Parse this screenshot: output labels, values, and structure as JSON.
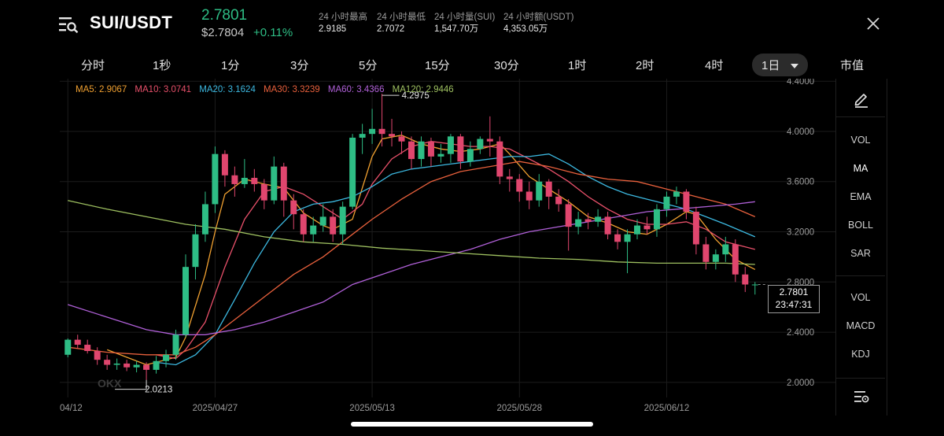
{
  "header": {
    "pair": "SUI/USDT",
    "last_price": "2.7801",
    "price_usd": "$2.7804",
    "change": "+0.11%",
    "stats": [
      {
        "label": "24 小时最高",
        "value": "2.9185"
      },
      {
        "label": "24 小时最低",
        "value": "2.7072"
      },
      {
        "label": "24 小时量(SUI)",
        "value": "1,547.70万"
      },
      {
        "label": "24 小时额(USDT)",
        "value": "4,353.05万"
      }
    ]
  },
  "tabs": [
    "分时",
    "1秒",
    "1分",
    "3分",
    "5分",
    "15分",
    "30分",
    "1时",
    "2时",
    "4时",
    "1日",
    "市值"
  ],
  "active_tab": "1日",
  "ma_legend": [
    {
      "label": "MA5: 2.9067",
      "color": "#f0a030"
    },
    {
      "label": "MA10: 3.0741",
      "color": "#e8506a"
    },
    {
      "label": "MA20: 3.1624",
      "color": "#3cb8e0"
    },
    {
      "label": "MA30: 3.3239",
      "color": "#e8603c"
    },
    {
      "label": "MA60: 3.4366",
      "color": "#b060d8"
    },
    {
      "label": "MA120: 2.9446",
      "color": "#9ec060"
    }
  ],
  "price_tag": {
    "price": "2.7801",
    "countdown": "23:47:31"
  },
  "annotations": {
    "high": "4.2975",
    "low": "2.0213"
  },
  "watermark": "OKX",
  "right_panel": {
    "main_items": [
      "VOL",
      "MA",
      "EMA",
      "BOLL",
      "SAR"
    ],
    "active_main": "MA",
    "sub_items": [
      "VOL",
      "MACD",
      "KDJ"
    ]
  },
  "colors": {
    "up": "#2ebd85",
    "down": "#e0466e",
    "grid": "#1c1c1c",
    "axis_text": "#9a9a9a"
  },
  "chart_data": {
    "type": "candlestick",
    "y_ticks": [
      4.4,
      4.0,
      3.6,
      3.2,
      2.8,
      2.4,
      2.0
    ],
    "y_tick_labels": [
      "4.4000",
      "4.0000",
      "3.6000",
      "3.2000",
      "2.8000",
      "2.4000",
      "2.0000"
    ],
    "ylim": [
      1.88,
      4.42
    ],
    "x_labels": [
      {
        "label": "04/12",
        "index": 0
      },
      {
        "label": "2025/04/27",
        "index": 15
      },
      {
        "label": "2025/05/13",
        "index": 31
      },
      {
        "label": "2025/05/28",
        "index": 46
      },
      {
        "label": "2025/06/12",
        "index": 61
      }
    ],
    "candles": [
      [
        2.22,
        2.34,
        2.2,
        2.35
      ],
      [
        2.34,
        2.3,
        2.27,
        2.38
      ],
      [
        2.3,
        2.25,
        2.23,
        2.34
      ],
      [
        2.25,
        2.18,
        2.14,
        2.28
      ],
      [
        2.18,
        2.14,
        2.1,
        2.22
      ],
      [
        2.14,
        2.15,
        2.1,
        2.19
      ],
      [
        2.15,
        2.12,
        2.09,
        2.18
      ],
      [
        2.12,
        2.14,
        2.08,
        2.17
      ],
      [
        2.14,
        2.1,
        2.02,
        2.16
      ],
      [
        2.1,
        2.17,
        2.07,
        2.21
      ],
      [
        2.17,
        2.22,
        2.12,
        2.26
      ],
      [
        2.22,
        2.38,
        2.18,
        2.42
      ],
      [
        2.38,
        2.92,
        2.36,
        3.02
      ],
      [
        2.92,
        3.18,
        2.82,
        3.26
      ],
      [
        3.18,
        3.42,
        3.12,
        3.52
      ],
      [
        3.42,
        3.82,
        3.35,
        3.88
      ],
      [
        3.82,
        3.65,
        3.56,
        3.85
      ],
      [
        3.65,
        3.58,
        3.48,
        3.72
      ],
      [
        3.58,
        3.63,
        3.55,
        3.78
      ],
      [
        3.63,
        3.58,
        3.52,
        3.7
      ],
      [
        3.58,
        3.45,
        3.38,
        3.62
      ],
      [
        3.45,
        3.72,
        3.42,
        3.8
      ],
      [
        3.72,
        3.45,
        3.32,
        3.75
      ],
      [
        3.45,
        3.34,
        3.22,
        3.5
      ],
      [
        3.34,
        3.18,
        3.12,
        3.38
      ],
      [
        3.18,
        3.25,
        3.12,
        3.32
      ],
      [
        3.25,
        3.32,
        3.2,
        3.42
      ],
      [
        3.32,
        3.18,
        3.12,
        3.38
      ],
      [
        3.18,
        3.4,
        3.1,
        3.44
      ],
      [
        3.4,
        3.95,
        3.38,
        3.98
      ],
      [
        3.95,
        3.98,
        3.82,
        4.06
      ],
      [
        3.98,
        4.02,
        3.9,
        4.18
      ],
      [
        4.02,
        3.98,
        3.88,
        4.3
      ],
      [
        3.98,
        3.96,
        3.88,
        4.1
      ],
      [
        3.96,
        3.92,
        3.82,
        4.0
      ],
      [
        3.92,
        3.78,
        3.7,
        3.96
      ],
      [
        3.78,
        3.92,
        3.72,
        3.96
      ],
      [
        3.92,
        3.8,
        3.72,
        3.95
      ],
      [
        3.8,
        3.82,
        3.75,
        3.9
      ],
      [
        3.82,
        3.96,
        3.75,
        3.98
      ],
      [
        3.96,
        3.76,
        3.7,
        3.98
      ],
      [
        3.76,
        3.86,
        3.72,
        3.92
      ],
      [
        3.86,
        3.94,
        3.82,
        3.96
      ],
      [
        3.94,
        3.92,
        3.8,
        4.12
      ],
      [
        3.92,
        3.64,
        3.58,
        3.96
      ],
      [
        3.64,
        3.62,
        3.52,
        3.7
      ],
      [
        3.62,
        3.52,
        3.44,
        3.66
      ],
      [
        3.52,
        3.45,
        3.38,
        3.6
      ],
      [
        3.45,
        3.6,
        3.4,
        3.66
      ],
      [
        3.6,
        3.48,
        3.38,
        3.62
      ],
      [
        3.48,
        3.42,
        3.36,
        3.54
      ],
      [
        3.42,
        3.24,
        3.05,
        3.46
      ],
      [
        3.24,
        3.3,
        3.18,
        3.36
      ],
      [
        3.3,
        3.28,
        3.22,
        3.35
      ],
      [
        3.28,
        3.32,
        3.24,
        3.38
      ],
      [
        3.32,
        3.18,
        3.14,
        3.36
      ],
      [
        3.18,
        3.12,
        3.06,
        3.22
      ],
      [
        3.12,
        3.18,
        2.87,
        3.22
      ],
      [
        3.18,
        3.25,
        3.14,
        3.3
      ],
      [
        3.25,
        3.22,
        3.18,
        3.32
      ],
      [
        3.22,
        3.38,
        3.16,
        3.42
      ],
      [
        3.38,
        3.48,
        3.32,
        3.52
      ],
      [
        3.48,
        3.52,
        3.42,
        3.56
      ],
      [
        3.52,
        3.36,
        3.3,
        3.54
      ],
      [
        3.36,
        3.1,
        3.02,
        3.4
      ],
      [
        3.1,
        2.96,
        2.9,
        3.16
      ],
      [
        2.96,
        3.02,
        2.9,
        3.06
      ],
      [
        3.02,
        3.1,
        2.96,
        3.16
      ],
      [
        3.1,
        2.86,
        2.8,
        3.14
      ],
      [
        2.86,
        2.78,
        2.72,
        2.92
      ],
      [
        2.78,
        2.78,
        2.7,
        2.8
      ]
    ],
    "moving_averages": [
      {
        "name": "MA5",
        "color": "#f0a030",
        "points": [
          [
            4,
            2.26
          ],
          [
            8,
            2.14
          ],
          [
            11,
            2.2
          ],
          [
            12,
            2.36
          ],
          [
            14,
            2.86
          ],
          [
            15,
            3.2
          ],
          [
            16,
            3.5
          ],
          [
            18,
            3.62
          ],
          [
            20,
            3.58
          ],
          [
            22,
            3.55
          ],
          [
            24,
            3.35
          ],
          [
            26,
            3.25
          ],
          [
            27,
            3.22
          ],
          [
            29,
            3.3
          ],
          [
            30,
            3.55
          ],
          [
            31,
            3.8
          ],
          [
            32,
            3.94
          ],
          [
            34,
            3.97
          ],
          [
            36,
            3.9
          ],
          [
            38,
            3.86
          ],
          [
            40,
            3.84
          ],
          [
            42,
            3.86
          ],
          [
            44,
            3.9
          ],
          [
            45,
            3.82
          ],
          [
            47,
            3.64
          ],
          [
            49,
            3.54
          ],
          [
            51,
            3.44
          ],
          [
            53,
            3.32
          ],
          [
            55,
            3.27
          ],
          [
            57,
            3.2
          ],
          [
            59,
            3.18
          ],
          [
            61,
            3.26
          ],
          [
            63,
            3.36
          ],
          [
            64,
            3.34
          ],
          [
            66,
            3.14
          ],
          [
            68,
            2.98
          ],
          [
            70,
            2.9
          ]
        ]
      },
      {
        "name": "MA10",
        "color": "#e8506a",
        "points": [
          [
            9,
            2.22
          ],
          [
            11,
            2.19
          ],
          [
            12,
            2.26
          ],
          [
            14,
            2.48
          ],
          [
            16,
            2.92
          ],
          [
            18,
            3.3
          ],
          [
            20,
            3.52
          ],
          [
            22,
            3.56
          ],
          [
            24,
            3.5
          ],
          [
            26,
            3.4
          ],
          [
            28,
            3.3
          ],
          [
            30,
            3.42
          ],
          [
            31,
            3.58
          ],
          [
            33,
            3.78
          ],
          [
            35,
            3.88
          ],
          [
            37,
            3.92
          ],
          [
            39,
            3.9
          ],
          [
            41,
            3.88
          ],
          [
            43,
            3.88
          ],
          [
            45,
            3.86
          ],
          [
            47,
            3.78
          ],
          [
            49,
            3.7
          ],
          [
            51,
            3.6
          ],
          [
            53,
            3.48
          ],
          [
            55,
            3.38
          ],
          [
            57,
            3.3
          ],
          [
            59,
            3.26
          ],
          [
            61,
            3.26
          ],
          [
            63,
            3.28
          ],
          [
            65,
            3.22
          ],
          [
            67,
            3.12
          ],
          [
            70,
            3.06
          ]
        ]
      },
      {
        "name": "MA20",
        "color": "#3cb8e0",
        "points": [
          [
            9,
            2.16
          ],
          [
            11,
            2.14
          ],
          [
            13,
            2.22
          ],
          [
            15,
            2.38
          ],
          [
            17,
            2.66
          ],
          [
            19,
            2.95
          ],
          [
            21,
            3.2
          ],
          [
            23,
            3.36
          ],
          [
            25,
            3.42
          ],
          [
            27,
            3.44
          ],
          [
            29,
            3.48
          ],
          [
            31,
            3.56
          ],
          [
            33,
            3.66
          ],
          [
            35,
            3.7
          ],
          [
            37,
            3.72
          ],
          [
            39,
            3.74
          ],
          [
            41,
            3.76
          ],
          [
            43,
            3.78
          ],
          [
            45,
            3.8
          ],
          [
            47,
            3.8
          ],
          [
            49,
            3.82
          ],
          [
            51,
            3.74
          ],
          [
            53,
            3.64
          ],
          [
            55,
            3.56
          ],
          [
            57,
            3.5
          ],
          [
            59,
            3.46
          ],
          [
            61,
            3.42
          ],
          [
            63,
            3.38
          ],
          [
            65,
            3.32
          ],
          [
            67,
            3.26
          ],
          [
            70,
            3.16
          ]
        ]
      },
      {
        "name": "MA30",
        "color": "#e8603c",
        "points": [
          [
            0,
            2.28
          ],
          [
            4,
            2.24
          ],
          [
            8,
            2.22
          ],
          [
            11,
            2.22
          ],
          [
            13,
            2.28
          ],
          [
            15,
            2.38
          ],
          [
            17,
            2.5
          ],
          [
            20,
            2.68
          ],
          [
            23,
            2.86
          ],
          [
            26,
            3.0
          ],
          [
            29,
            3.18
          ],
          [
            31,
            3.3
          ],
          [
            34,
            3.46
          ],
          [
            37,
            3.6
          ],
          [
            40,
            3.68
          ],
          [
            43,
            3.72
          ],
          [
            46,
            3.76
          ],
          [
            49,
            3.72
          ],
          [
            52,
            3.66
          ],
          [
            55,
            3.62
          ],
          [
            58,
            3.6
          ],
          [
            61,
            3.54
          ],
          [
            64,
            3.48
          ],
          [
            67,
            3.42
          ],
          [
            70,
            3.32
          ]
        ]
      },
      {
        "name": "MA60",
        "color": "#b060d8",
        "points": [
          [
            0,
            2.62
          ],
          [
            4,
            2.52
          ],
          [
            8,
            2.42
          ],
          [
            11,
            2.38
          ],
          [
            14,
            2.38
          ],
          [
            17,
            2.42
          ],
          [
            20,
            2.48
          ],
          [
            23,
            2.56
          ],
          [
            26,
            2.64
          ],
          [
            29,
            2.78
          ],
          [
            32,
            2.86
          ],
          [
            35,
            2.94
          ],
          [
            38,
            3.0
          ],
          [
            41,
            3.06
          ],
          [
            44,
            3.14
          ],
          [
            47,
            3.2
          ],
          [
            50,
            3.24
          ],
          [
            53,
            3.28
          ],
          [
            56,
            3.32
          ],
          [
            59,
            3.36
          ],
          [
            62,
            3.38
          ],
          [
            65,
            3.4
          ],
          [
            68,
            3.42
          ],
          [
            70,
            3.44
          ]
        ]
      },
      {
        "name": "MA120",
        "color": "#9ec060",
        "points": [
          [
            0,
            3.45
          ],
          [
            4,
            3.38
          ],
          [
            8,
            3.32
          ],
          [
            12,
            3.26
          ],
          [
            16,
            3.22
          ],
          [
            20,
            3.16
          ],
          [
            24,
            3.12
          ],
          [
            28,
            3.1
          ],
          [
            32,
            3.07
          ],
          [
            36,
            3.05
          ],
          [
            40,
            3.03
          ],
          [
            44,
            3.01
          ],
          [
            48,
            2.99
          ],
          [
            52,
            2.98
          ],
          [
            56,
            2.96
          ],
          [
            60,
            2.95
          ],
          [
            64,
            2.95
          ],
          [
            67,
            2.95
          ],
          [
            70,
            2.94
          ]
        ]
      }
    ]
  }
}
